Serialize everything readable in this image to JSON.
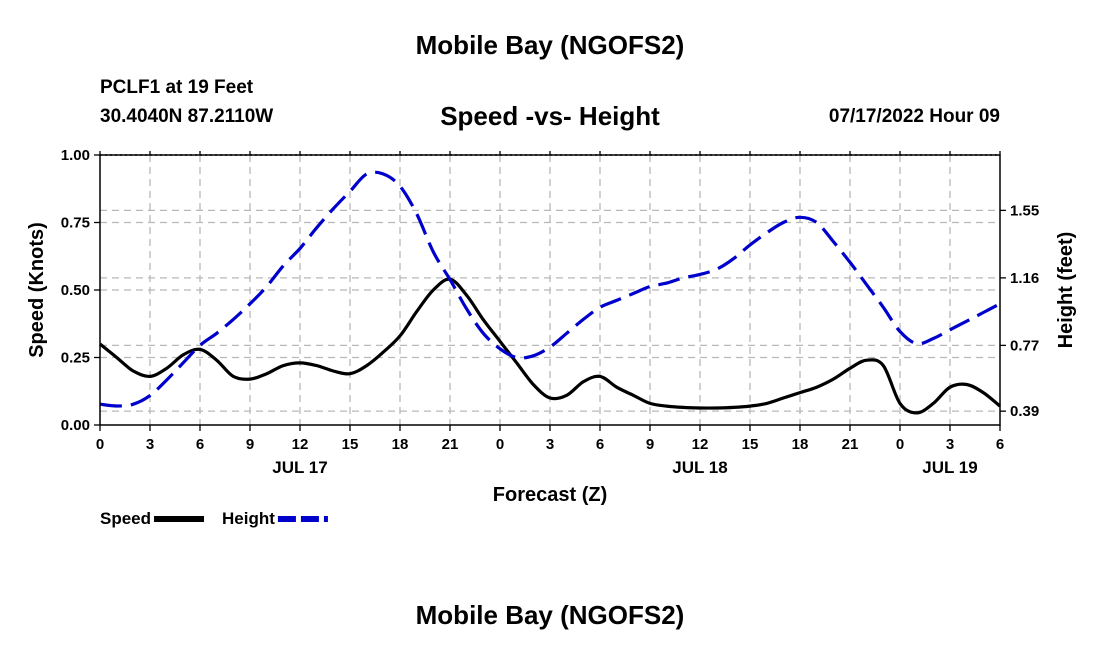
{
  "header": {
    "title": "Mobile Bay (NGOFS2)",
    "station": "PCLF1 at 19 Feet",
    "coords": "30.4040N  87.2110W",
    "subtitle": "Speed -vs- Height",
    "datetime": "07/17/2022 Hour 09"
  },
  "footer": {
    "title": "Mobile Bay (NGOFS2)"
  },
  "chart_data": {
    "type": "line",
    "title": "Speed -vs- Height",
    "xlabel": "Forecast (Z)",
    "ylabel": "Speed (Knots)",
    "y2label": "Height (feet)",
    "x_unit": "hours from JUL 17 00Z",
    "xlim": [
      0,
      54
    ],
    "ylim": [
      0,
      1.0
    ],
    "y2lim": [
      0.31,
      1.87
    ],
    "grid": true,
    "legend_position": "bottom-left",
    "x_ticks": [
      {
        "x": 0,
        "label": "0"
      },
      {
        "x": 3,
        "label": "3"
      },
      {
        "x": 6,
        "label": "6"
      },
      {
        "x": 9,
        "label": "9"
      },
      {
        "x": 12,
        "label": "12"
      },
      {
        "x": 15,
        "label": "15"
      },
      {
        "x": 18,
        "label": "18"
      },
      {
        "x": 21,
        "label": "21"
      },
      {
        "x": 24,
        "label": "0"
      },
      {
        "x": 27,
        "label": "3"
      },
      {
        "x": 30,
        "label": "6"
      },
      {
        "x": 33,
        "label": "9"
      },
      {
        "x": 36,
        "label": "12"
      },
      {
        "x": 39,
        "label": "15"
      },
      {
        "x": 42,
        "label": "18"
      },
      {
        "x": 45,
        "label": "21"
      },
      {
        "x": 48,
        "label": "0"
      },
      {
        "x": 51,
        "label": "3"
      },
      {
        "x": 54,
        "label": "6"
      }
    ],
    "day_labels": [
      {
        "x": 12,
        "label": "JUL 17"
      },
      {
        "x": 36,
        "label": "JUL 18"
      },
      {
        "x": 51,
        "label": "JUL 19"
      }
    ],
    "y_ticks": [
      {
        "v": 0.0,
        "label": "0.00"
      },
      {
        "v": 0.25,
        "label": "0.25"
      },
      {
        "v": 0.5,
        "label": "0.50"
      },
      {
        "v": 0.75,
        "label": "0.75"
      },
      {
        "v": 1.0,
        "label": "1.00"
      }
    ],
    "y2_ticks": [
      {
        "v": 0.39,
        "label": "0.39"
      },
      {
        "v": 0.77,
        "label": "0.77"
      },
      {
        "v": 1.16,
        "label": "1.16"
      },
      {
        "v": 1.55,
        "label": "1.55"
      }
    ],
    "series": [
      {
        "name": "Speed",
        "axis": "left",
        "color": "#000000",
        "dash": "solid",
        "x": [
          0,
          1,
          2,
          3,
          4,
          5,
          6,
          7,
          8,
          9,
          10,
          11,
          12,
          13,
          14,
          15,
          16,
          17,
          18,
          19,
          20,
          21,
          22,
          23,
          24,
          25,
          26,
          27,
          28,
          29,
          30,
          31,
          32,
          33,
          34,
          35,
          36,
          37,
          38,
          39,
          40,
          41,
          42,
          43,
          44,
          45,
          46,
          47,
          48,
          49,
          50,
          51,
          52,
          53,
          54
        ],
        "y": [
          0.3,
          0.25,
          0.2,
          0.18,
          0.21,
          0.26,
          0.28,
          0.24,
          0.18,
          0.17,
          0.19,
          0.22,
          0.23,
          0.22,
          0.2,
          0.19,
          0.22,
          0.27,
          0.33,
          0.42,
          0.5,
          0.54,
          0.48,
          0.39,
          0.31,
          0.23,
          0.15,
          0.1,
          0.11,
          0.16,
          0.18,
          0.14,
          0.11,
          0.08,
          0.07,
          0.065,
          0.063,
          0.063,
          0.065,
          0.07,
          0.08,
          0.1,
          0.12,
          0.14,
          0.17,
          0.21,
          0.24,
          0.22,
          0.08,
          0.045,
          0.08,
          0.14,
          0.15,
          0.12,
          0.07
        ]
      },
      {
        "name": "Height",
        "axis": "right",
        "color": "#0000cc",
        "dash": "dashed",
        "x": [
          0,
          1,
          2,
          3,
          4,
          5,
          6,
          7,
          8,
          9,
          10,
          11,
          12,
          13,
          14,
          15,
          16,
          17,
          18,
          19,
          20,
          21,
          22,
          23,
          24,
          25,
          26,
          27,
          28,
          29,
          30,
          31,
          32,
          33,
          34,
          35,
          36,
          37,
          38,
          39,
          40,
          41,
          42,
          43,
          44,
          45,
          46,
          47,
          48,
          49,
          50,
          51,
          52,
          53,
          54
        ],
        "y": [
          0.43,
          0.42,
          0.43,
          0.48,
          0.57,
          0.67,
          0.77,
          0.84,
          0.92,
          1.01,
          1.11,
          1.23,
          1.33,
          1.45,
          1.56,
          1.66,
          1.76,
          1.76,
          1.69,
          1.53,
          1.31,
          1.15,
          0.98,
          0.84,
          0.75,
          0.7,
          0.71,
          0.76,
          0.84,
          0.92,
          0.99,
          1.03,
          1.07,
          1.11,
          1.13,
          1.16,
          1.18,
          1.21,
          1.27,
          1.35,
          1.42,
          1.48,
          1.51,
          1.48,
          1.37,
          1.25,
          1.12,
          0.99,
          0.85,
          0.78,
          0.81,
          0.86,
          0.91,
          0.96,
          1.01
        ]
      }
    ]
  }
}
